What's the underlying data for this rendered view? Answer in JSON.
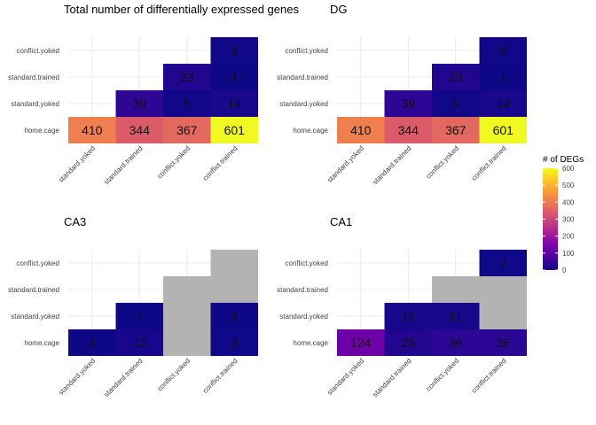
{
  "chart_data": [
    {
      "type": "heatmap",
      "title": "Total number of differentially expressed genes",
      "x_categories": [
        "standard.yoked",
        "standard.trained",
        "conflict.yoked",
        "conflict.trained"
      ],
      "y_categories": [
        "home.cage",
        "standard.yoked",
        "standard.trained",
        "conflict.yoked"
      ],
      "cells": [
        {
          "x": "standard.yoked",
          "y": "home.cage",
          "value": 410
        },
        {
          "x": "standard.trained",
          "y": "home.cage",
          "value": 344
        },
        {
          "x": "conflict.yoked",
          "y": "home.cage",
          "value": 367
        },
        {
          "x": "conflict.trained",
          "y": "home.cage",
          "value": 601
        },
        {
          "x": "standard.trained",
          "y": "standard.yoked",
          "value": 39
        },
        {
          "x": "conflict.yoked",
          "y": "standard.yoked",
          "value": 5
        },
        {
          "x": "conflict.trained",
          "y": "standard.yoked",
          "value": 14
        },
        {
          "x": "conflict.yoked",
          "y": "standard.trained",
          "value": 23
        },
        {
          "x": "conflict.trained",
          "y": "standard.trained",
          "value": 1
        },
        {
          "x": "conflict.trained",
          "y": "conflict.yoked",
          "value": 5
        }
      ]
    },
    {
      "type": "heatmap",
      "title": "DG",
      "x_categories": [
        "standard.yoked",
        "standard.trained",
        "conflict.yoked",
        "conflict.trained"
      ],
      "y_categories": [
        "home.cage",
        "standard.yoked",
        "standard.trained",
        "conflict.yoked"
      ],
      "cells": [
        {
          "x": "standard.yoked",
          "y": "home.cage",
          "value": 410
        },
        {
          "x": "standard.trained",
          "y": "home.cage",
          "value": 344
        },
        {
          "x": "conflict.yoked",
          "y": "home.cage",
          "value": 367
        },
        {
          "x": "conflict.trained",
          "y": "home.cage",
          "value": 601
        },
        {
          "x": "standard.trained",
          "y": "standard.yoked",
          "value": 39
        },
        {
          "x": "conflict.yoked",
          "y": "standard.yoked",
          "value": 5
        },
        {
          "x": "conflict.trained",
          "y": "standard.yoked",
          "value": 14
        },
        {
          "x": "conflict.yoked",
          "y": "standard.trained",
          "value": 23
        },
        {
          "x": "conflict.trained",
          "y": "standard.trained",
          "value": 1
        },
        {
          "x": "conflict.trained",
          "y": "conflict.yoked",
          "value": 5
        }
      ]
    },
    {
      "type": "heatmap",
      "title": "CA3",
      "x_categories": [
        "standard.yoked",
        "standard.trained",
        "conflict.yoked",
        "conflict.trained"
      ],
      "y_categories": [
        "home.cage",
        "standard.yoked",
        "standard.trained",
        "conflict.yoked"
      ],
      "cells": [
        {
          "x": "standard.yoked",
          "y": "home.cage",
          "value": 1
        },
        {
          "x": "standard.trained",
          "y": "home.cage",
          "value": 13
        },
        {
          "x": "conflict.yoked",
          "y": "home.cage",
          "value": null
        },
        {
          "x": "conflict.trained",
          "y": "home.cage",
          "value": 2
        },
        {
          "x": "standard.trained",
          "y": "standard.yoked",
          "value": 1
        },
        {
          "x": "conflict.yoked",
          "y": "standard.yoked",
          "value": null
        },
        {
          "x": "conflict.trained",
          "y": "standard.yoked",
          "value": 1
        },
        {
          "x": "conflict.yoked",
          "y": "standard.trained",
          "value": null
        },
        {
          "x": "conflict.trained",
          "y": "standard.trained",
          "value": null
        },
        {
          "x": "conflict.trained",
          "y": "conflict.yoked",
          "value": null
        }
      ]
    },
    {
      "type": "heatmap",
      "title": "CA1",
      "x_categories": [
        "standard.yoked",
        "standard.trained",
        "conflict.yoked",
        "conflict.trained"
      ],
      "y_categories": [
        "home.cage",
        "standard.yoked",
        "standard.trained",
        "conflict.yoked"
      ],
      "cells": [
        {
          "x": "standard.yoked",
          "y": "home.cage",
          "value": 124
        },
        {
          "x": "standard.trained",
          "y": "home.cage",
          "value": 25
        },
        {
          "x": "conflict.yoked",
          "y": "home.cage",
          "value": 36
        },
        {
          "x": "conflict.trained",
          "y": "home.cage",
          "value": 36
        },
        {
          "x": "standard.trained",
          "y": "standard.yoked",
          "value": 11
        },
        {
          "x": "conflict.yoked",
          "y": "standard.yoked",
          "value": 11
        },
        {
          "x": "conflict.trained",
          "y": "standard.yoked",
          "value": null
        },
        {
          "x": "conflict.yoked",
          "y": "standard.trained",
          "value": null
        },
        {
          "x": "conflict.trained",
          "y": "standard.trained",
          "value": null
        },
        {
          "x": "conflict.trained",
          "y": "conflict.yoked",
          "value": 2
        }
      ]
    }
  ],
  "legend": {
    "title": "# of DEGs",
    "range": [
      0,
      600
    ],
    "ticks": [
      0,
      100,
      200,
      300,
      400,
      500,
      600
    ],
    "colormap": "plasma",
    "na_color": "#b3b3b3"
  }
}
